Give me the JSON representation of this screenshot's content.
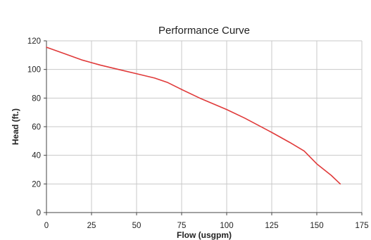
{
  "chart_data": {
    "type": "line",
    "title": "Performance Curve",
    "xlabel": "Flow (usgpm)",
    "ylabel": "Head (ft.)",
    "xlim": [
      0,
      175
    ],
    "ylim": [
      0,
      120
    ],
    "x_ticks": [
      0,
      25,
      50,
      75,
      100,
      125,
      150,
      175
    ],
    "y_ticks": [
      0,
      20,
      40,
      60,
      80,
      100,
      120
    ],
    "grid": true,
    "series": [
      {
        "color": "#e03a3a",
        "points": [
          [
            0,
            115.5
          ],
          [
            10,
            111
          ],
          [
            20,
            106.5
          ],
          [
            30,
            103
          ],
          [
            40,
            100
          ],
          [
            50,
            97
          ],
          [
            60,
            94
          ],
          [
            67,
            91
          ],
          [
            75,
            86
          ],
          [
            85,
            80
          ],
          [
            100,
            72
          ],
          [
            110,
            66
          ],
          [
            125,
            56
          ],
          [
            135,
            49
          ],
          [
            143,
            43
          ],
          [
            150,
            34
          ],
          [
            158,
            26
          ],
          [
            163,
            20
          ]
        ]
      }
    ],
    "colors": {
      "grid": "#c8c8c8",
      "axis": "#444444",
      "text": "#222222"
    }
  }
}
